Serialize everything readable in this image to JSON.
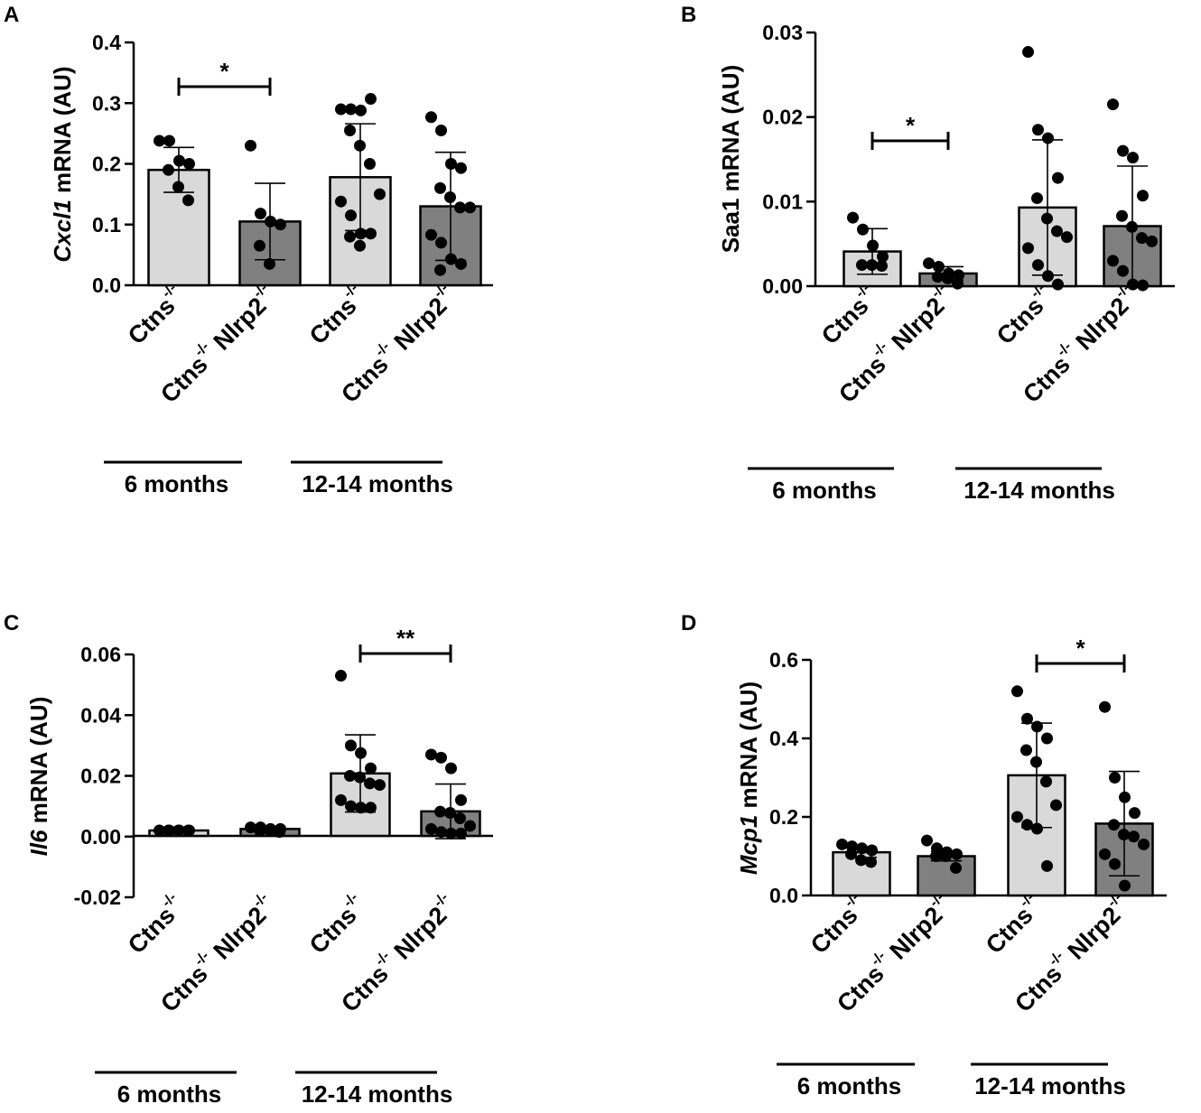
{
  "colors": {
    "light": "#d9d9d9",
    "dark": "#808080",
    "ink": "#000000"
  },
  "groups": [
    "6 months",
    "12-14 months"
  ],
  "chart_data": [
    {
      "panel": "A",
      "type": "bar",
      "ylabel": {
        "gene": "Cxcl1",
        "rest": "mRNA (AU)",
        "italic": true
      },
      "ylim": [
        0,
        0.4
      ],
      "yticks": [
        "0.0",
        "0.1",
        "0.2",
        "0.3",
        "0.4"
      ],
      "categories": [
        {
          "name": "Ctns",
          "sup": "-/-"
        },
        {
          "name": "Ctns",
          "sup": "-/-",
          "name2": "Nlrp2",
          "sup2": "-/-"
        },
        {
          "name": "Ctns",
          "sup": "-/-"
        },
        {
          "name": "Ctns",
          "sup": "-/-",
          "name2": "Nlrp2",
          "sup2": "-/-"
        }
      ],
      "values": [
        0.19,
        0.105,
        0.178,
        0.13
      ],
      "sd": [
        0.037,
        0.063,
        0.088,
        0.089
      ],
      "points": [
        [
          0.238,
          0.238,
          0.205,
          0.2,
          0.19,
          0.162,
          0.14
        ],
        [
          0.23,
          0.118,
          0.105,
          0.1,
          0.065,
          0.035
        ],
        [
          0.29,
          0.29,
          0.288,
          0.307,
          0.255,
          0.23,
          0.2,
          0.15,
          0.138,
          0.115,
          0.085,
          0.085,
          0.08,
          0.065
        ],
        [
          0.277,
          0.255,
          0.2,
          0.193,
          0.16,
          0.145,
          0.128,
          0.128,
          0.083,
          0.07,
          0.043,
          0.035,
          0.025
        ]
      ],
      "significance": [
        {
          "from": 0,
          "to": 1,
          "label": "*"
        }
      ]
    },
    {
      "panel": "B",
      "type": "bar",
      "ylabel": {
        "gene": "Saa1",
        "rest": "mRNA (AU)",
        "italic": false
      },
      "ylim": [
        0,
        0.03
      ],
      "yticks": [
        "0.00",
        "0.01",
        "0.02",
        "0.03"
      ],
      "categories": [
        {
          "name": "Ctns",
          "sup": "-/-"
        },
        {
          "name": "Ctns",
          "sup": "-/-",
          "name2": "Nlrp2",
          "sup2": "-/-"
        },
        {
          "name": "Ctns",
          "sup": "-/-"
        },
        {
          "name": "Ctns",
          "sup": "-/-",
          "name2": "Nlrp2",
          "sup2": "-/-"
        }
      ],
      "values": [
        0.0041,
        0.0015,
        0.0093,
        0.0071
      ],
      "sd": [
        0.0027,
        0.0008,
        0.008,
        0.0071
      ],
      "points": [
        [
          0.0081,
          0.0067,
          0.0048,
          0.0035,
          0.0025,
          0.0025,
          0.0024
        ],
        [
          0.0027,
          0.0023,
          0.0015,
          0.0013,
          0.0011,
          0.0009,
          0.0003
        ],
        [
          0.0277,
          0.0185,
          0.0175,
          0.0128,
          0.0104,
          0.008,
          0.0065,
          0.0058,
          0.0045,
          0.0025,
          0.0012,
          0.0002
        ],
        [
          0.0215,
          0.016,
          0.0152,
          0.0107,
          0.0083,
          0.007,
          0.0057,
          0.0053,
          0.003,
          0.0018,
          0.0002,
          0.0001
        ]
      ],
      "significance": [
        {
          "from": 0,
          "to": 1,
          "label": "*"
        }
      ]
    },
    {
      "panel": "C",
      "type": "bar",
      "ylabel": {
        "gene": "Il6",
        "rest": "mRNA (AU)",
        "italic": true
      },
      "ylim": [
        -0.02,
        0.06
      ],
      "yticks": [
        "-0.02",
        "0.00",
        "0.02",
        "0.04",
        "0.06"
      ],
      "categories": [
        {
          "name": "Ctns",
          "sup": "-/-"
        },
        {
          "name": "Ctns",
          "sup": "-/-",
          "name2": "Nlrp2",
          "sup2": "-/-"
        },
        {
          "name": "Ctns",
          "sup": "-/-"
        },
        {
          "name": "Ctns",
          "sup": "-/-",
          "name2": "Nlrp2",
          "sup2": "-/-"
        }
      ],
      "values": [
        0.002,
        0.0025,
        0.0208,
        0.0083
      ],
      "sd": [
        0.0004,
        0.0006,
        0.0127,
        0.009
      ],
      "points": [
        [
          0.002,
          0.002,
          0.002,
          0.002,
          0.002,
          0.002,
          0.002
        ],
        [
          0.003,
          0.003,
          0.0025,
          0.0025,
          0.002,
          0.002,
          0.0015
        ],
        [
          0.053,
          0.03,
          0.0275,
          0.0225,
          0.02,
          0.0195,
          0.0175,
          0.017,
          0.012,
          0.01,
          0.0095,
          0.0095
        ],
        [
          0.027,
          0.026,
          0.0225,
          0.012,
          0.0082,
          0.0078,
          0.006,
          0.0035,
          0.0025,
          0.0015,
          0.001,
          0.001
        ]
      ],
      "significance": [
        {
          "from": 2,
          "to": 3,
          "label": "**"
        }
      ]
    },
    {
      "panel": "D",
      "type": "bar",
      "ylabel": {
        "gene": "Mcp1",
        "rest": "mRNA (AU)",
        "italic": true
      },
      "ylim": [
        0,
        0.6
      ],
      "yticks": [
        "0.0",
        "0.2",
        "0.4",
        "0.6"
      ],
      "categories": [
        {
          "name": "Ctns",
          "sup": "-/-"
        },
        {
          "name": "Ctns",
          "sup": "-/-",
          "name2": "Nlrp2",
          "sup2": "-/-"
        },
        {
          "name": "Ctns",
          "sup": "-/-"
        },
        {
          "name": "Ctns",
          "sup": "-/-",
          "name2": "Nlrp2",
          "sup2": "-/-"
        }
      ],
      "values": [
        0.11,
        0.1,
        0.306,
        0.183
      ],
      "sd": [
        0.013,
        0.012,
        0.133,
        0.133
      ],
      "points": [
        [
          0.13,
          0.125,
          0.12,
          0.115,
          0.105,
          0.09,
          0.085
        ],
        [
          0.14,
          0.12,
          0.11,
          0.105,
          0.1,
          0.1,
          0.07
        ],
        [
          0.52,
          0.45,
          0.43,
          0.4,
          0.37,
          0.34,
          0.29,
          0.23,
          0.2,
          0.18,
          0.17,
          0.075
        ],
        [
          0.48,
          0.3,
          0.25,
          0.21,
          0.18,
          0.155,
          0.15,
          0.13,
          0.105,
          0.08,
          0.025
        ]
      ],
      "significance": [
        {
          "from": 2,
          "to": 3,
          "label": "*"
        }
      ]
    }
  ]
}
